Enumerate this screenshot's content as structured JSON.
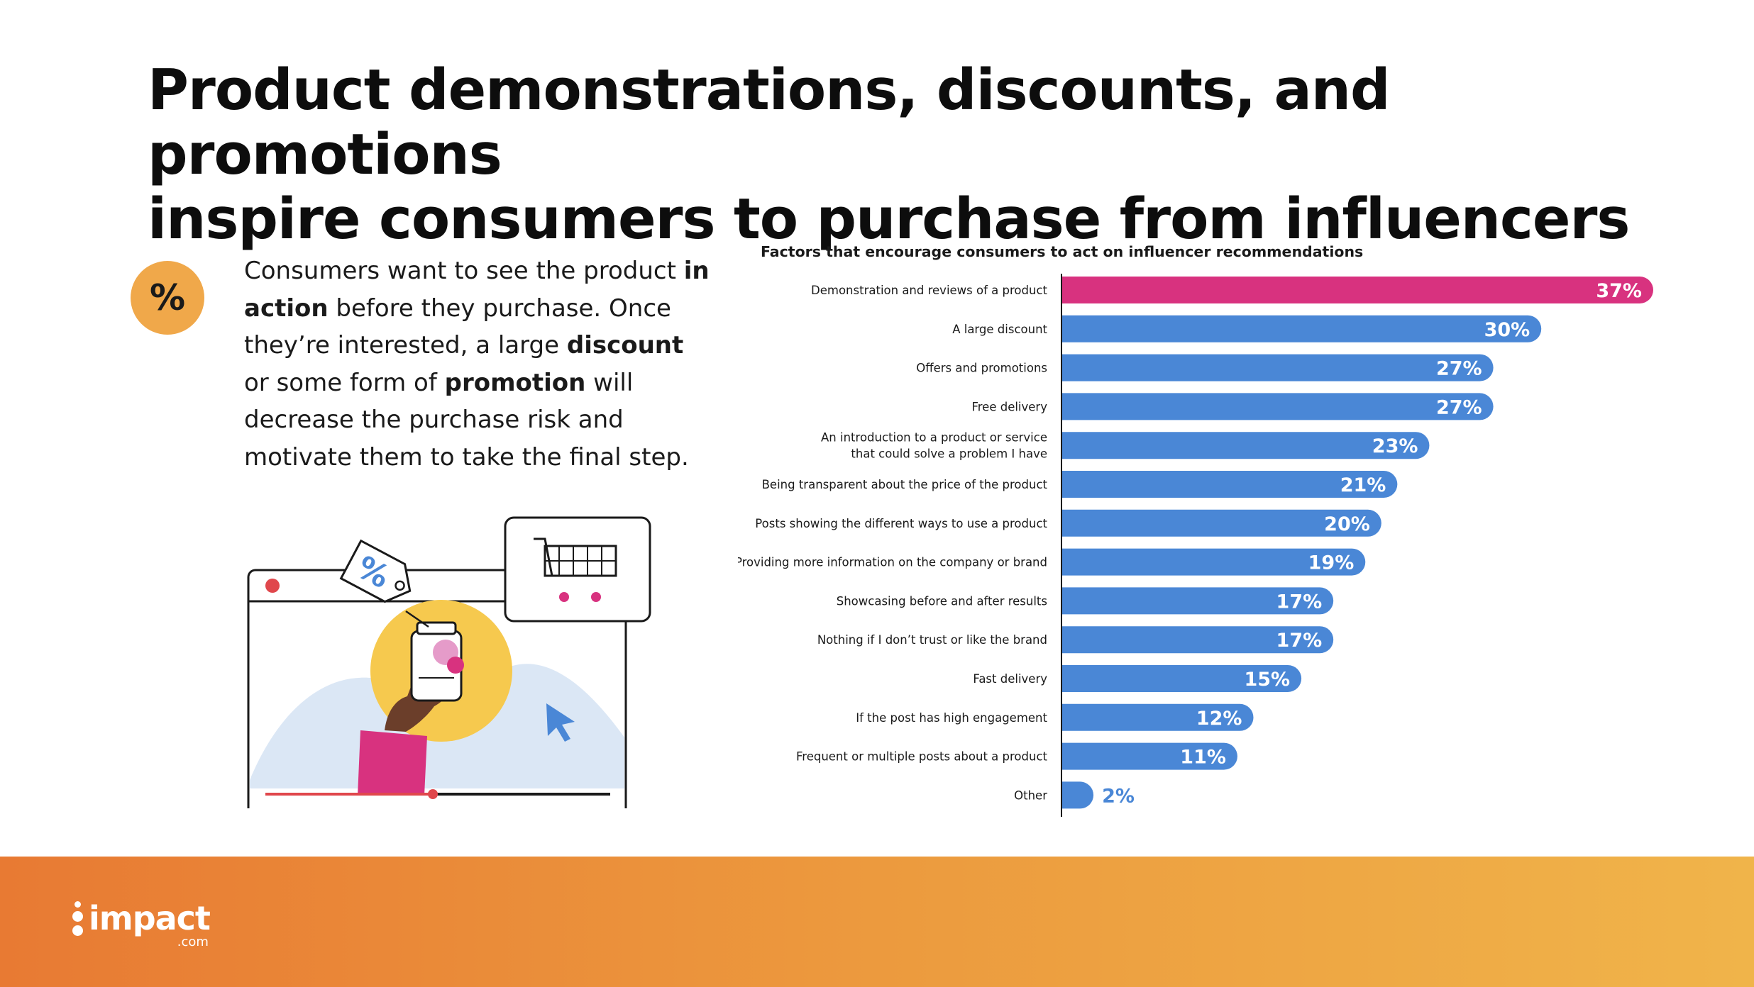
{
  "headline": {
    "line1": "Product demonstrations, discounts, and promotions",
    "line2": "inspire consumers to purchase from influencers"
  },
  "badge": {
    "symbol": "%"
  },
  "body": [
    {
      "text": "Consumers want to see the product ",
      "bold": false
    },
    {
      "text": "in action",
      "bold": true
    },
    {
      "text": " before they purchase. Once they’re interested, a large ",
      "bold": false
    },
    {
      "text": "discount",
      "bold": true
    },
    {
      "text": " or some form of ",
      "bold": false
    },
    {
      "text": "promotion",
      "bold": true
    },
    {
      "text": " will decrease the purchase risk and motivate them to take the final step.",
      "bold": false
    }
  ],
  "illustration": {
    "tag_symbol": "%"
  },
  "chart_data": {
    "type": "bar",
    "orientation": "horizontal",
    "title": "Factors that encourage consumers to act on influencer recommendations",
    "categories": [
      [
        "Demonstration and reviews of a product"
      ],
      [
        "A large discount"
      ],
      [
        "Offers and promotions"
      ],
      [
        "Free delivery"
      ],
      [
        "An introduction to a product or service",
        "that could solve a problem I have"
      ],
      [
        "Being transparent about the price of the product"
      ],
      [
        "Posts showing the different ways to use a product"
      ],
      [
        "Providing more information on the company or brand"
      ],
      [
        "Showcasing before and after results"
      ],
      [
        "Nothing if I don’t trust or like the brand"
      ],
      [
        "Fast delivery"
      ],
      [
        "If the post has high engagement"
      ],
      [
        "Frequent or multiple posts about a product"
      ],
      [
        "Other"
      ]
    ],
    "values": [
      37,
      30,
      27,
      27,
      23,
      21,
      20,
      19,
      17,
      17,
      15,
      12,
      11,
      2
    ],
    "value_labels": [
      "37%",
      "30%",
      "27%",
      "27%",
      "23%",
      "21%",
      "20%",
      "19%",
      "17%",
      "17%",
      "15%",
      "12%",
      "11%",
      "2%"
    ],
    "highlight_index": 0,
    "highlight_color": "#d8327f",
    "bar_color": "#4a87d6",
    "xlim": [
      0,
      37
    ],
    "grid": false,
    "legend": "none"
  },
  "brand": {
    "name": "impact",
    "suffix": ".com"
  },
  "colors": {
    "badge": "#f0a84a",
    "footer_start": "#e87a33",
    "footer_end": "#f0b44a"
  }
}
